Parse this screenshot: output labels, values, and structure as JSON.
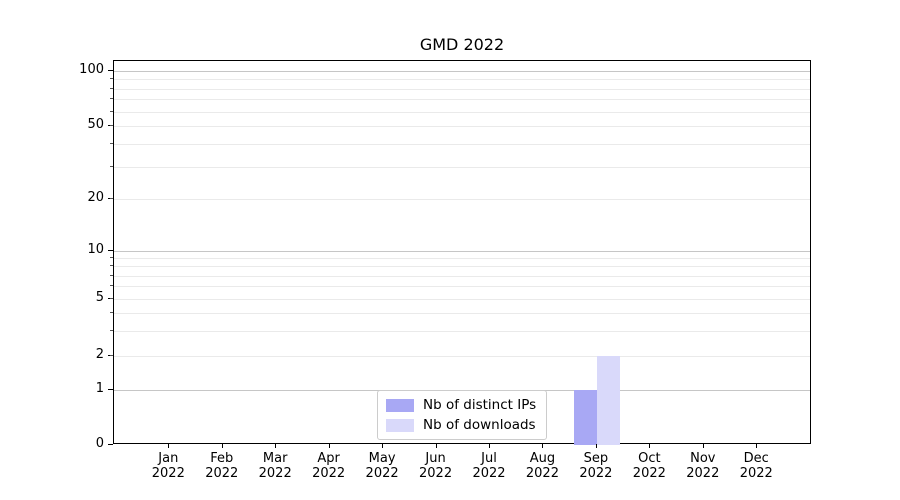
{
  "chart_data": {
    "type": "bar",
    "title": "GMD 2022",
    "x_axis": {
      "months": [
        "Jan",
        "Feb",
        "Mar",
        "Apr",
        "May",
        "Jun",
        "Jul",
        "Aug",
        "Sep",
        "Oct",
        "Nov",
        "Dec"
      ],
      "year": "2022"
    },
    "y_axis": {
      "scale": "symlog",
      "labeled_ticks": [
        0,
        1,
        2,
        5,
        10,
        20,
        50,
        100
      ],
      "major_gridlines": [
        1,
        10,
        100
      ],
      "minor_gridlines": [
        2,
        3,
        4,
        5,
        6,
        7,
        8,
        9,
        20,
        30,
        40,
        50,
        60,
        70,
        80,
        90
      ],
      "grid": true
    },
    "series": [
      {
        "name": "Nb of distinct IPs",
        "color": "#a8a8f4",
        "values": [
          0,
          0,
          0,
          0,
          0,
          0,
          0,
          0,
          1,
          0,
          0,
          0
        ]
      },
      {
        "name": "Nb of downloads",
        "color": "#d9d9fa",
        "values": [
          0,
          0,
          0,
          0,
          0,
          0,
          0,
          0,
          2,
          0,
          0,
          0
        ]
      }
    ],
    "legend": {
      "position": "lower center",
      "border_color": "#cccccc"
    },
    "colors": {
      "background": "#ffffff",
      "spine": "#000000",
      "major_grid": "#c6c6c6",
      "minor_grid": "#eaeaea"
    }
  }
}
